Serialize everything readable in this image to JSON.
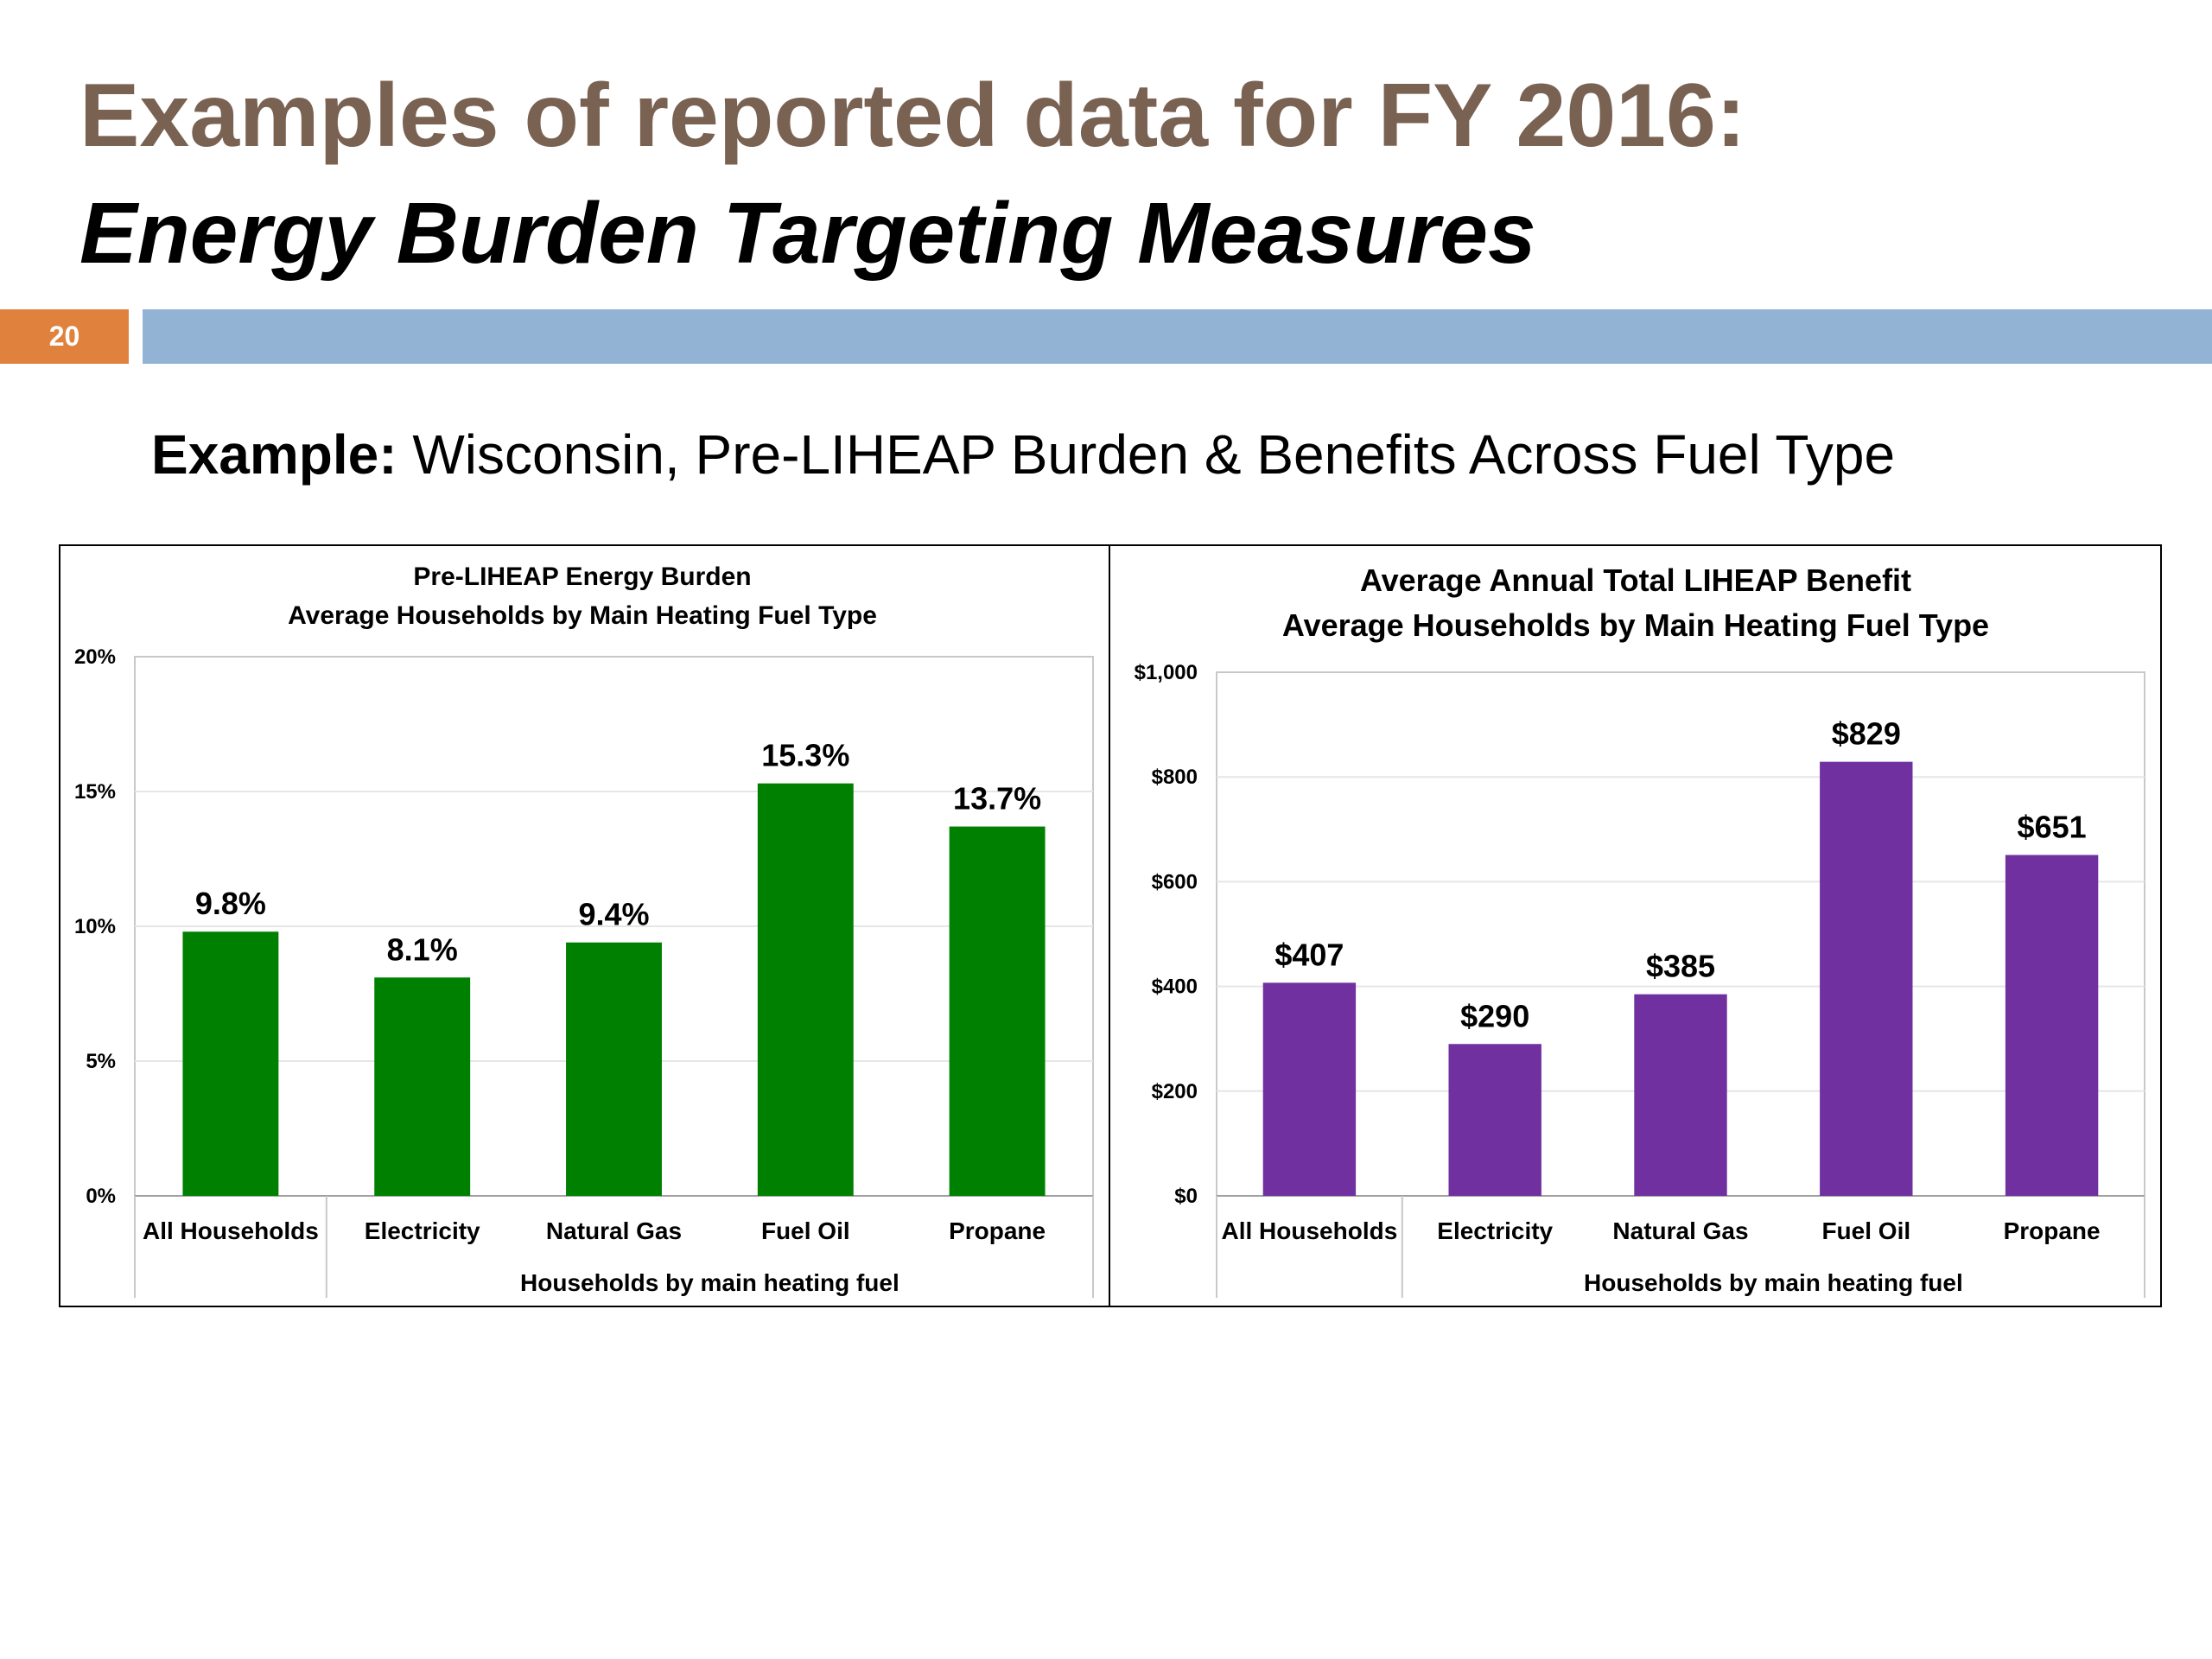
{
  "slide": {
    "title_line1": "Examples of reported data for FY 2016:",
    "title_line2": "Energy Burden Targeting Measures",
    "slide_number": "20",
    "example_label": "Example:",
    "example_text": " Wisconsin, Pre-LIHEAP Burden & Benefits Across Fuel Type"
  },
  "colors": {
    "title": "#7a6253",
    "slide_number_bg": "#e0823e",
    "rule": "#93b3d4",
    "burden_bars": "#008000",
    "benefit_bars": "#7030a0"
  },
  "chart_data": [
    {
      "type": "bar",
      "title": "Pre-LIHEAP Energy Burden",
      "subtitle": "Average Households by Main Heating Fuel Type",
      "categories": [
        "All Households",
        "Electricity",
        "Natural Gas",
        "Fuel Oil",
        "Propane"
      ],
      "values": [
        9.8,
        8.1,
        9.4,
        15.3,
        13.7
      ],
      "data_labels": [
        "9.8%",
        "8.1%",
        "9.4%",
        "15.3%",
        "13.7%"
      ],
      "yticks": [
        0,
        5,
        10,
        15,
        20
      ],
      "ytick_labels": [
        "0%",
        "5%",
        "10%",
        "15%",
        "20%"
      ],
      "ylim": [
        0,
        20
      ],
      "xlabel": "Households by main heating fuel",
      "ylabel": "",
      "grid": true,
      "legend": "none",
      "color": "#008000"
    },
    {
      "type": "bar",
      "title": "Average Annual Total LIHEAP Benefit",
      "subtitle": "Average Households by Main Heating Fuel Type",
      "categories": [
        "All Households",
        "Electricity",
        "Natural Gas",
        "Fuel Oil",
        "Propane"
      ],
      "values": [
        407,
        290,
        385,
        829,
        651
      ],
      "data_labels": [
        "$407",
        "$290",
        "$385",
        "$829",
        "$651"
      ],
      "yticks": [
        0,
        200,
        400,
        600,
        800,
        1000
      ],
      "ytick_labels": [
        "$0",
        "$200",
        "$400",
        "$600",
        "$800",
        "$1,000"
      ],
      "ylim": [
        0,
        1000
      ],
      "xlabel": "Households by main heating fuel",
      "ylabel": "",
      "grid": true,
      "legend": "none",
      "color": "#7030a0"
    }
  ]
}
